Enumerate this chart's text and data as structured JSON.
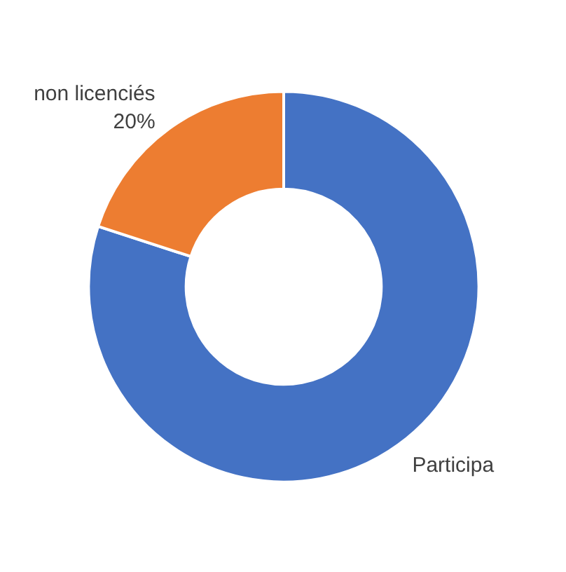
{
  "chart_data": {
    "type": "donut",
    "categories": [
      "Participa",
      "non licenciés"
    ],
    "values": [
      80,
      20
    ],
    "colors": [
      "#4472c4",
      "#ed7d31"
    ],
    "value_labels": [
      null,
      "20%"
    ]
  }
}
